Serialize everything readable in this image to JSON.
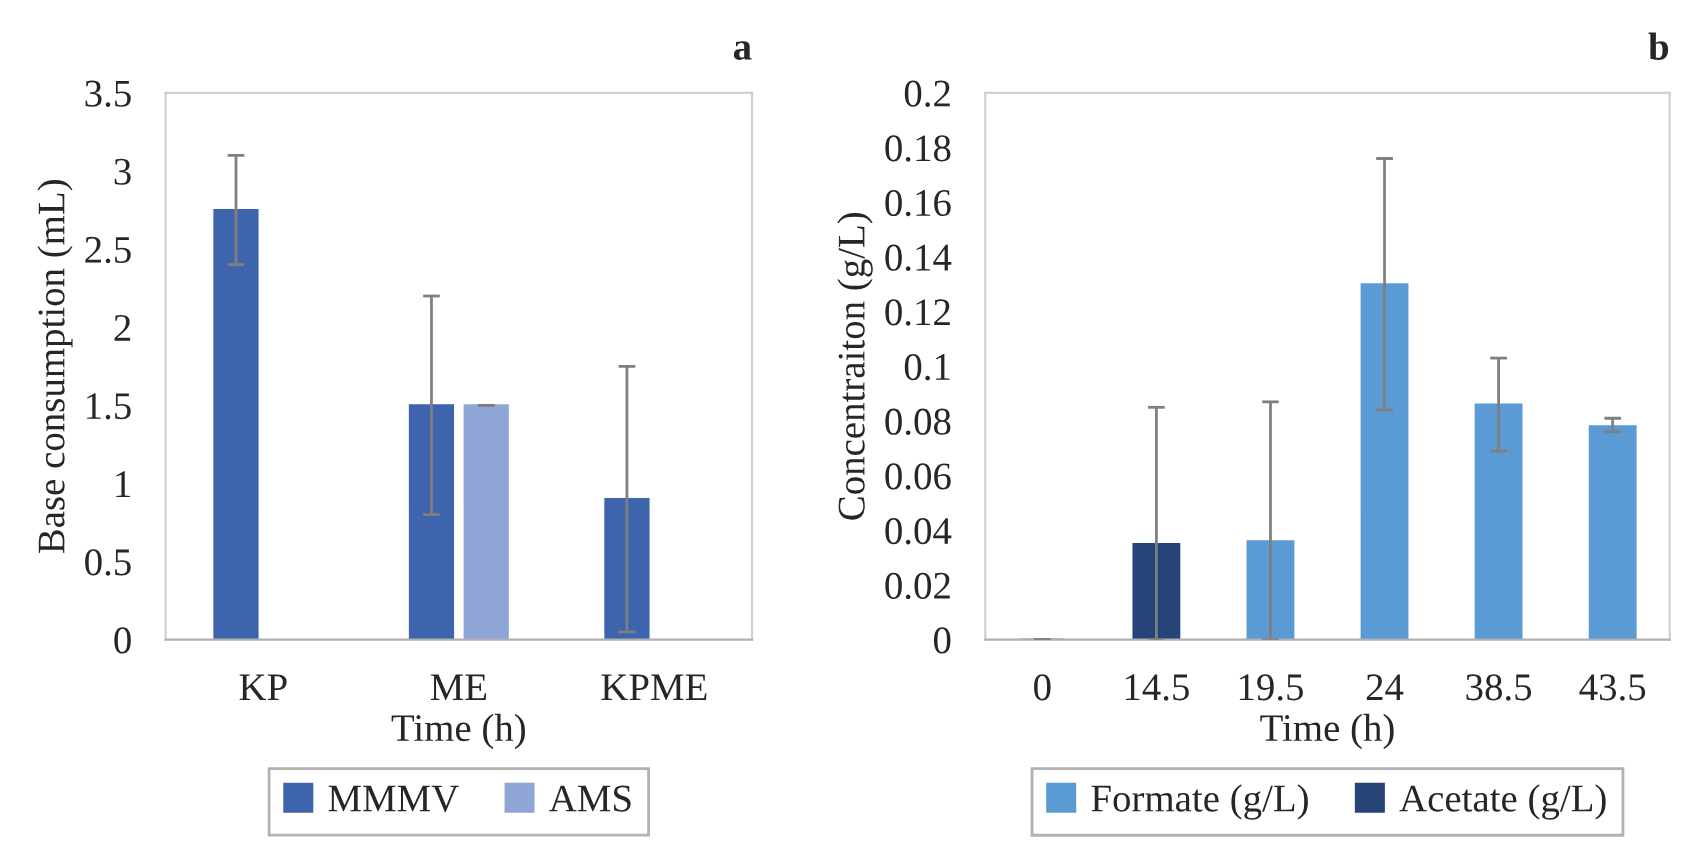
{
  "chart_data": [
    {
      "type": "bar",
      "title": "a",
      "xlabel": "Time (h)",
      "ylabel": "Base consumption (mL)",
      "categories": [
        "KP",
        "ME",
        "KPME"
      ],
      "ylim": [
        0,
        3.5
      ],
      "yticks": [
        0,
        0.5,
        1,
        1.5,
        2,
        2.5,
        3,
        3.5
      ],
      "grid": false,
      "legend": "bottom",
      "series": [
        {
          "name": "MMMV",
          "color": "#3d64ad",
          "values": [
            2.75,
            1.5,
            0.9
          ],
          "errors": [
            [
              2.4,
              3.1
            ],
            [
              0.8,
              2.2
            ],
            [
              0.05,
              1.75
            ]
          ]
        },
        {
          "name": "AMS",
          "color": "#8fa6d6",
          "values": [
            null,
            1.5,
            null
          ],
          "errors": [
            null,
            0,
            null
          ]
        }
      ]
    },
    {
      "type": "bar",
      "title": "b",
      "xlabel": "Time (h)",
      "ylabel": "Concentraiton (g/L)",
      "categories": [
        "0",
        "14.5",
        "19.5",
        "24",
        "38.5",
        "43.5"
      ],
      "ylim": [
        0,
        0.2
      ],
      "yticks": [
        0,
        0.02,
        0.04,
        0.06,
        0.08,
        0.1,
        0.12,
        0.14,
        0.16,
        0.18,
        0.2
      ],
      "grid": false,
      "legend": "bottom",
      "series": [
        {
          "name": "Formate (g/L)",
          "color": "#5b9bd5",
          "values": [
            0,
            null,
            0.036,
            0.13,
            0.086,
            0.078
          ],
          "errors": [
            0,
            null,
            [
              0,
              0.087
            ],
            [
              0.084,
              0.176
            ],
            [
              0.069,
              0.103
            ],
            [
              0.076,
              0.081
            ]
          ]
        },
        {
          "name": "Acetate (g/L)",
          "color": "#264478",
          "values": [
            null,
            0.035,
            null,
            null,
            null,
            null
          ],
          "errors": [
            null,
            [
              0,
              0.085
            ],
            null,
            null,
            null,
            null
          ]
        }
      ]
    }
  ]
}
